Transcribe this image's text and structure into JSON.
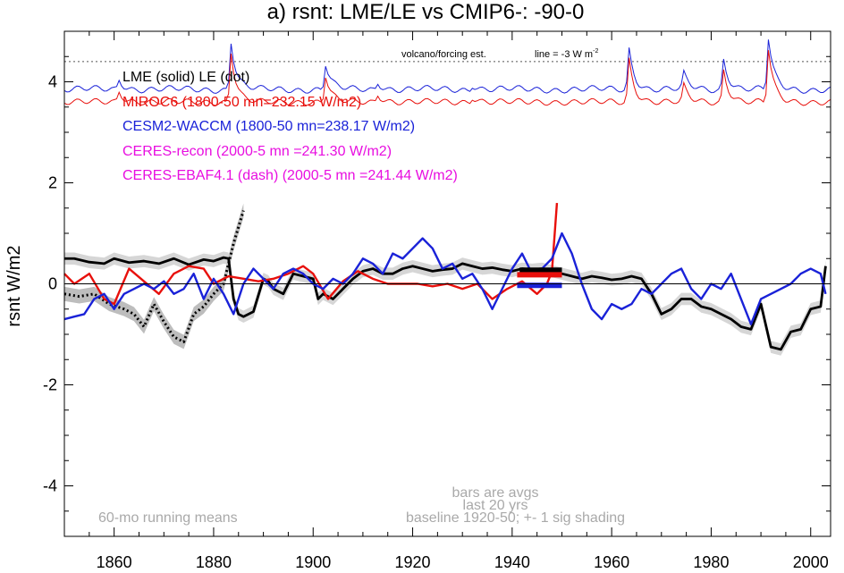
{
  "chart_data": {
    "type": "line",
    "title": "a) rsnt: LME/LE vs CMIP6-: -90-0",
    "ylabel": "rsnt W/m2",
    "xlabel": "",
    "xlim": [
      1850,
      2004
    ],
    "ylim": [
      -5,
      5
    ],
    "xticks": [
      "1860",
      "1880",
      "1900",
      "1920",
      "1940",
      "1960",
      "1980",
      "2000"
    ],
    "yticks": [
      "-4",
      "-2",
      "0",
      "2",
      "4"
    ],
    "legend": [
      {
        "text": "LME (solid)   LE (dot)",
        "color": "#000000"
      },
      {
        "text": "MIROC6 (1800-50 mn=232.15 W/m2)",
        "color": "#e8100c"
      },
      {
        "text": "CESM2-WACCM (1800-50 mn=238.17 W/m2)",
        "color": "#1a22d8"
      },
      {
        "text": "CERES-recon (2000-5 mn =241.30 W/m2)",
        "color": "#e80ee0"
      },
      {
        "text": "CERES-EBAF4.1 (dash) (2000-5 mn =241.44 W/m2)",
        "color": "#e80ee0"
      }
    ],
    "annotations": {
      "volcano": "volcano/forcing est.",
      "line_note": "line = -3 W m",
      "line_sup": "-2",
      "bars1": "bars are avgs",
      "bars2": "last 20 yrs",
      "running": "60-mo running means",
      "baseline": "baseline 1920-50; +- 1 sig shading"
    },
    "colors": {
      "lme": "#000000",
      "miroc": "#e8100c",
      "cesm": "#1a22d8",
      "shade": "#d6d6d6",
      "shade_le": "#bdbdbd"
    },
    "series": [
      {
        "name": "LME (solid)",
        "color": "#000000",
        "x": [
          1850,
          1852,
          1855,
          1858,
          1860,
          1863,
          1866,
          1869,
          1872,
          1875,
          1878,
          1880,
          1882,
          1883,
          1884,
          1885,
          1886,
          1888,
          1890,
          1891,
          1892,
          1894,
          1896,
          1898,
          1900,
          1901,
          1902,
          1904,
          1906,
          1908,
          1910,
          1912,
          1914,
          1916,
          1918,
          1920,
          1922,
          1924,
          1926,
          1928,
          1930,
          1932,
          1934,
          1936,
          1938,
          1940,
          1942,
          1944,
          1946,
          1948,
          1950,
          1952,
          1954,
          1956,
          1958,
          1960,
          1962,
          1964,
          1966,
          1968,
          1970,
          1972,
          1974,
          1976,
          1978,
          1980,
          1982,
          1984,
          1986,
          1988,
          1990,
          1992,
          1994,
          1996,
          1998,
          2000,
          2002,
          2003
        ],
        "y": [
          0.5,
          0.5,
          0.43,
          0.4,
          0.5,
          0.42,
          0.45,
          0.4,
          0.5,
          0.38,
          0.48,
          0.45,
          0.52,
          0.5,
          -0.3,
          -0.6,
          -0.65,
          -0.55,
          0.1,
          0.05,
          -0.1,
          -0.2,
          0.2,
          0.15,
          0.1,
          -0.3,
          -0.2,
          -0.3,
          -0.1,
          0.1,
          0.25,
          0.3,
          0.2,
          0.2,
          0.3,
          0.35,
          0.3,
          0.25,
          0.28,
          0.3,
          0.4,
          0.35,
          0.3,
          0.32,
          0.28,
          0.25,
          0.3,
          0.28,
          0.3,
          0.25,
          0.2,
          0.15,
          0.1,
          0.15,
          0.12,
          0.08,
          0.1,
          0.15,
          0.1,
          -0.2,
          -0.6,
          -0.5,
          -0.3,
          -0.3,
          -0.45,
          -0.5,
          -0.6,
          -0.7,
          -0.85,
          -0.9,
          -0.4,
          -1.25,
          -1.3,
          -0.95,
          -0.9,
          -0.5,
          -0.45,
          0.35
        ]
      },
      {
        "name": "LE (dot)",
        "color": "#000000",
        "dash": true,
        "x": [
          1850,
          1853,
          1856,
          1859,
          1862,
          1864,
          1866,
          1868,
          1870,
          1872,
          1874,
          1876,
          1878,
          1880,
          1882,
          1884,
          1886
        ],
        "y": [
          -0.2,
          -0.25,
          -0.2,
          -0.4,
          -0.5,
          -0.6,
          -0.85,
          -0.4,
          -0.75,
          -1.05,
          -1.15,
          -0.6,
          -0.45,
          -0.2,
          0.0,
          0.8,
          1.45
        ]
      },
      {
        "name": "MIROC6",
        "color": "#e8100c",
        "x": [
          1850,
          1852,
          1855,
          1858,
          1860,
          1863,
          1866,
          1869,
          1872,
          1875,
          1878,
          1880,
          1883,
          1886,
          1889,
          1892,
          1895,
          1898,
          1900,
          1903,
          1906,
          1909,
          1912,
          1915,
          1918,
          1921,
          1924,
          1927,
          1930,
          1933,
          1936,
          1939,
          1942,
          1945,
          1947,
          1948,
          1949
        ],
        "y": [
          0.2,
          0.0,
          0.2,
          -0.3,
          -0.4,
          0.3,
          0.05,
          -0.2,
          0.2,
          0.35,
          0.3,
          0.0,
          0.15,
          0.1,
          0.05,
          0.1,
          0.2,
          0.35,
          0.2,
          -0.3,
          0.05,
          0.25,
          0.1,
          0.0,
          0.0,
          0.0,
          -0.05,
          0.0,
          -0.1,
          0.0,
          -0.3,
          -0.1,
          0.05,
          -0.2,
          0.0,
          0.25,
          1.6
        ]
      },
      {
        "name": "CESM2-WACCM",
        "color": "#1a22d8",
        "x": [
          1850,
          1852,
          1854,
          1856,
          1858,
          1860,
          1862,
          1864,
          1866,
          1868,
          1870,
          1872,
          1874,
          1876,
          1878,
          1880,
          1882,
          1884,
          1886,
          1888,
          1890,
          1892,
          1894,
          1896,
          1898,
          1900,
          1902,
          1904,
          1906,
          1908,
          1910,
          1912,
          1914,
          1916,
          1918,
          1920,
          1922,
          1924,
          1926,
          1928,
          1930,
          1932,
          1934,
          1936,
          1938,
          1940,
          1942,
          1944,
          1946,
          1948,
          1950,
          1952,
          1954,
          1956,
          1958,
          1960,
          1962,
          1964,
          1966,
          1968,
          1970,
          1972,
          1974,
          1976,
          1978,
          1980,
          1982,
          1984,
          1986,
          1988,
          1990,
          1992,
          1994,
          1996,
          1998,
          2000,
          2002,
          2003
        ],
        "y": [
          -0.7,
          -0.65,
          -0.6,
          -0.3,
          -0.2,
          -0.5,
          -0.2,
          -0.1,
          0.0,
          -0.1,
          0.05,
          -0.2,
          -0.1,
          0.2,
          -0.3,
          0.1,
          -0.2,
          -0.6,
          0.0,
          0.3,
          0.1,
          -0.1,
          0.2,
          0.3,
          0.2,
          0.0,
          -0.1,
          0.1,
          0.0,
          0.2,
          0.5,
          0.4,
          0.2,
          0.6,
          0.5,
          0.7,
          0.9,
          0.7,
          0.3,
          0.4,
          0.1,
          0.2,
          -0.1,
          -0.5,
          -0.1,
          0.3,
          0.6,
          0.2,
          0.3,
          0.5,
          1.0,
          0.6,
          0.0,
          -0.5,
          -0.7,
          -0.4,
          -0.5,
          -0.4,
          -0.1,
          -0.2,
          0.0,
          0.2,
          0.3,
          -0.1,
          -0.3,
          0.0,
          -0.1,
          0.2,
          -0.3,
          -0.8,
          -0.3,
          -0.2,
          -0.1,
          0.0,
          0.2,
          0.3,
          0.2,
          -0.2
        ]
      }
    ],
    "bars": [
      {
        "color": "#000000",
        "x0": 1941.5,
        "x1": 1950,
        "y": 0.27
      },
      {
        "color": "#e8100c",
        "x0": 1941,
        "x1": 1950,
        "y": 0.18
      },
      {
        "color": "#1a22d8",
        "x0": 1941,
        "x1": 1950,
        "y": -0.03
      }
    ],
    "forcing": {
      "ref": 4.4,
      "blue_base": 3.85,
      "red_base": 3.6,
      "spikes": [
        {
          "x": 1861,
          "h": 0.2
        },
        {
          "x": 1883.5,
          "h": 0.95
        },
        {
          "x": 1902.5,
          "h": 0.5
        },
        {
          "x": 1913,
          "h": 0.15
        },
        {
          "x": 1932,
          "h": 0.1
        },
        {
          "x": 1963.5,
          "h": 0.8
        },
        {
          "x": 1974.5,
          "h": 0.3
        },
        {
          "x": 1982.5,
          "h": 0.6
        },
        {
          "x": 1991.5,
          "h": 1.0
        }
      ]
    }
  }
}
